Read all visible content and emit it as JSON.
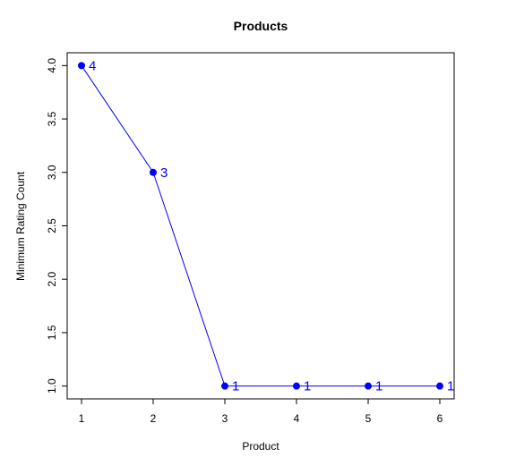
{
  "chart_data": {
    "type": "line",
    "title": "Products",
    "xlabel": "Product",
    "ylabel": "Minimum Rating Count",
    "x": [
      1,
      2,
      3,
      4,
      5,
      6
    ],
    "series": [
      {
        "values": [
          4,
          3,
          1,
          1,
          1,
          1
        ],
        "color": "#0000ff"
      }
    ],
    "data_labels": [
      "4",
      "3",
      "1",
      "1",
      "1",
      "1"
    ],
    "x_ticks": [
      1,
      2,
      3,
      4,
      5,
      6
    ],
    "x_tick_labels": [
      "1",
      "2",
      "3",
      "4",
      "5",
      "6"
    ],
    "y_ticks": [
      1.0,
      1.5,
      2.0,
      2.5,
      3.0,
      3.5,
      4.0
    ],
    "y_tick_labels": [
      "1.0",
      "1.5",
      "2.0",
      "2.5",
      "3.0",
      "3.5",
      "4.0"
    ],
    "xlim": [
      0.8,
      6.2
    ],
    "ylim": [
      0.88,
      4.12
    ],
    "grid": false,
    "legend": "none"
  }
}
